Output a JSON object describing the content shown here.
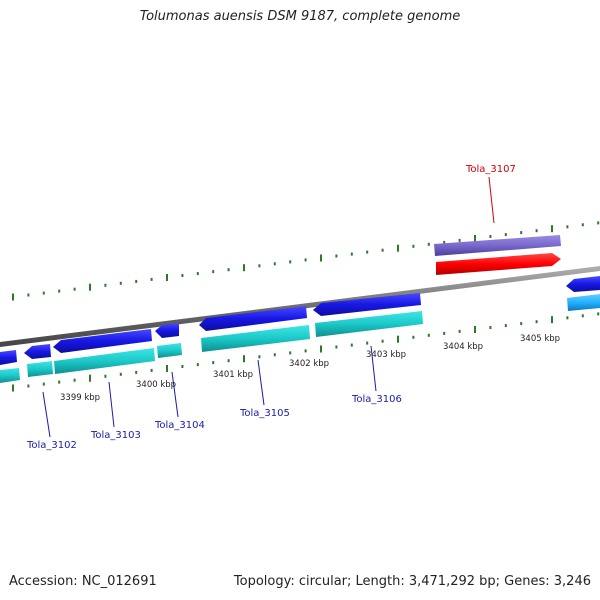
{
  "title": "Tolumonas auensis DSM 9187, complete genome",
  "footer": {
    "accession": "Accession: NC_012691",
    "summary": "Topology: circular; Length: 3,471,292 bp; Genes: 3,246"
  },
  "scale_ticks": [
    "3399 kbp",
    "3400 kbp",
    "3401 kbp",
    "3402 kbp",
    "3403 kbp",
    "3404 kbp",
    "3405 kbp"
  ],
  "genes": [
    {
      "name": "Tola_3102",
      "color": "#1a1aa8"
    },
    {
      "name": "Tola_3103",
      "color": "#1a1aa8"
    },
    {
      "name": "Tola_3104",
      "color": "#1a1aa8"
    },
    {
      "name": "Tola_3105",
      "color": "#1a1aa8"
    },
    {
      "name": "Tola_3106",
      "color": "#1a1aa8"
    },
    {
      "name": "Tola_3107",
      "color": "#cc0000"
    }
  ],
  "colors": {
    "cds": "#1515e0",
    "cds_lower": "#19c8c8",
    "cds_lower_alt": "#33bbff",
    "highlight": "#ff0000",
    "highlight_upper": "#7f6fcf",
    "backbone": "#7a7a7a",
    "ticks": "#2a7a2a"
  }
}
